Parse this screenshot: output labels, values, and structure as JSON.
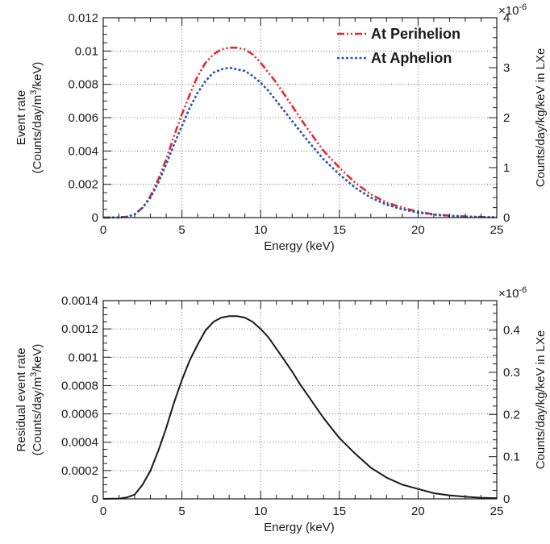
{
  "chart_data": [
    {
      "type": "line",
      "xlabel": "Energy (keV)",
      "ylabel_line1": "Event rate",
      "ylabel_line2": "(Counts/day/m",
      "ylabel_sup": "3",
      "ylabel_line2_tail": "/keV)",
      "y2label": "Counts/day/kg/keV in LXe",
      "y2_multiplier": "×10",
      "y2_multiplier_exp": "-6",
      "xlim": [
        0,
        25
      ],
      "ylim": [
        0,
        0.012
      ],
      "y2lim": [
        0,
        4.0
      ],
      "x_ticks": [
        "0",
        "5",
        "10",
        "15",
        "20",
        "25"
      ],
      "y_ticks": [
        "0",
        "0.002",
        "0.004",
        "0.006",
        "0.008",
        "0.01",
        "0.012"
      ],
      "y2_ticks": [
        "0",
        "1",
        "2",
        "3",
        "4"
      ],
      "grid": true,
      "legend_position": "top-right",
      "series": [
        {
          "name": "At Perihelion",
          "color": "#e8272f",
          "style": "dash-dot-dot",
          "x": [
            0,
            1,
            1.5,
            2,
            2.5,
            3,
            3.5,
            4,
            4.5,
            5,
            5.5,
            6,
            6.5,
            7,
            7.5,
            8,
            8.5,
            9,
            9.5,
            10,
            10.5,
            11,
            11.5,
            12,
            12.5,
            13,
            14,
            15,
            16,
            17,
            18,
            19,
            20,
            21,
            22,
            23,
            24,
            25
          ],
          "y": [
            0,
            1e-05,
            5e-05,
            0.0002,
            0.0006,
            0.0013,
            0.0023,
            0.0035,
            0.0049,
            0.0062,
            0.0074,
            0.0085,
            0.0093,
            0.0098,
            0.0101,
            0.0102,
            0.0102,
            0.0101,
            0.0098,
            0.0093,
            0.0087,
            0.0081,
            0.0074,
            0.0067,
            0.006,
            0.0053,
            0.004,
            0.003,
            0.0021,
            0.0014,
            0.0009,
            0.0006,
            0.00035,
            0.0002,
            0.00012,
            7e-05,
            4e-05,
            2e-05
          ]
        },
        {
          "name": "At Aphelion",
          "color": "#2f56a8",
          "style": "dotted",
          "x": [
            0,
            1,
            1.5,
            2,
            2.5,
            3,
            3.5,
            4,
            4.5,
            5,
            5.5,
            6,
            6.5,
            7,
            7.5,
            8,
            8.5,
            9,
            9.5,
            10,
            10.5,
            11,
            11.5,
            12,
            12.5,
            13,
            14,
            15,
            16,
            17,
            18,
            19,
            20,
            21,
            22,
            23,
            24,
            25
          ],
          "y": [
            0,
            1e-05,
            5e-05,
            0.0002,
            0.0006,
            0.0012,
            0.0021,
            0.0032,
            0.0044,
            0.0055,
            0.0066,
            0.0075,
            0.0082,
            0.0087,
            0.0089,
            0.009,
            0.0089,
            0.0088,
            0.0085,
            0.0081,
            0.0076,
            0.007,
            0.0064,
            0.0058,
            0.0052,
            0.0046,
            0.0035,
            0.0026,
            0.0018,
            0.0012,
            0.00078,
            0.0005,
            0.0003,
            0.00018,
            0.0001,
            6e-05,
            3e-05,
            2e-05
          ]
        }
      ]
    },
    {
      "type": "line",
      "xlabel": "Energy (keV)",
      "ylabel_line1": "Residual event rate",
      "ylabel_line2": "(Counts/day/m",
      "ylabel_sup": "3",
      "ylabel_line2_tail": "/keV)",
      "y2label": "Counts/day/kg/keV in LXe",
      "y2_multiplier": "×10",
      "y2_multiplier_exp": "-6",
      "xlim": [
        0,
        25
      ],
      "ylim": [
        0,
        0.0014
      ],
      "y2lim": [
        0,
        0.47
      ],
      "x_ticks": [
        "0",
        "5",
        "10",
        "15",
        "20",
        "25"
      ],
      "y_ticks": [
        "0",
        "0.0002",
        "0.0004",
        "0.0006",
        "0.0008",
        "0.001",
        "0.0012",
        "0.0014"
      ],
      "y2_ticks": [
        "0",
        "0.1",
        "0.2",
        "0.3",
        "0.4"
      ],
      "grid": true,
      "series": [
        {
          "color": "#1a1a1a",
          "style": "solid",
          "x": [
            0,
            1,
            1.5,
            2,
            2.5,
            3,
            3.5,
            4,
            4.5,
            5,
            5.5,
            6,
            6.5,
            7,
            7.5,
            8,
            8.5,
            9,
            9.5,
            10,
            10.5,
            11,
            11.5,
            12,
            12.5,
            13,
            13.5,
            14,
            14.5,
            15,
            16,
            17,
            18,
            19,
            20,
            21,
            22,
            23,
            24,
            25
          ],
          "y": [
            0,
            2e-06,
            1e-05,
            3e-05,
            0.0001,
            0.0002,
            0.00034,
            0.0005,
            0.00068,
            0.00084,
            0.00098,
            0.00109,
            0.00119,
            0.00125,
            0.00128,
            0.00129,
            0.00129,
            0.00128,
            0.00125,
            0.0012,
            0.00114,
            0.00106,
            0.00098,
            0.0009,
            0.00081,
            0.00073,
            0.00065,
            0.00057,
            0.0005,
            0.00043,
            0.00032,
            0.00022,
            0.00015,
            0.0001,
            7e-05,
            4e-05,
            2.5e-05,
            1.5e-05,
            8e-06,
            5e-06
          ]
        }
      ]
    }
  ]
}
